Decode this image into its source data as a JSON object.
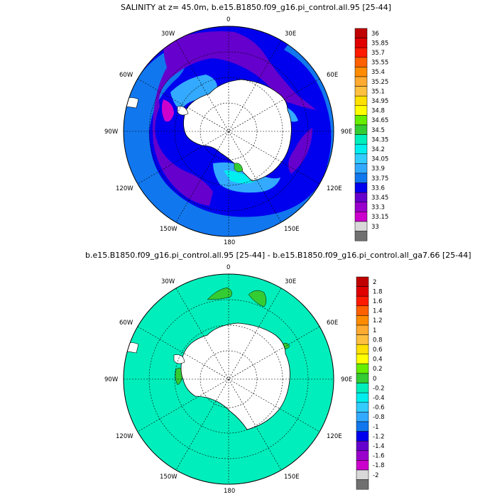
{
  "panel_top": {
    "title": "SALINITY at z=  45.0m, b.e15.B1850.f09_g16.pi_control.all.95 [25-44]",
    "lon_labels": [
      "0",
      "30E",
      "60E",
      "90E",
      "120E",
      "150E",
      "180",
      "150W",
      "120W",
      "90W",
      "60W",
      "30W"
    ],
    "colorbar_labels": [
      "36",
      "35.85",
      "35.7",
      "35.55",
      "35.4",
      "35.25",
      "35.1",
      "34.95",
      "34.8",
      "34.65",
      "34.5",
      "34.35",
      "34.2",
      "34.05",
      "33.9",
      "33.75",
      "33.6",
      "33.45",
      "33.3",
      "33.15",
      "33"
    ],
    "colorbar_colors": [
      "#c00000",
      "#e00000",
      "#ff1a00",
      "#ff6000",
      "#ff8c00",
      "#ffaa30",
      "#ffc040",
      "#ffe000",
      "#ffff00",
      "#66ee00",
      "#33cc33",
      "#00eebb",
      "#00eeee",
      "#33ccff",
      "#33aaff",
      "#1177ee",
      "#0000ee",
      "#6600cc",
      "#9900cc",
      "#cc00cc",
      "#d8d8d8",
      "#707070"
    ]
  },
  "panel_bottom": {
    "title": "b.e15.B1850.f09_g16.pi_control.all.95 [25-44] - b.e15.B1850.f09_g16.pi_control.all_ga7.66 [25-44]",
    "lon_labels": [
      "0",
      "30E",
      "60E",
      "90E",
      "120E",
      "150E",
      "180",
      "150W",
      "120W",
      "90W",
      "60W",
      "30W"
    ],
    "colorbar_labels": [
      "2",
      "1.8",
      "1.6",
      "1.4",
      "1.2",
      "1",
      "0.8",
      "0.6",
      "0.4",
      "0.2",
      "0",
      "-0.2",
      "-0.4",
      "-0.6",
      "-0.8",
      "-1",
      "-1.2",
      "-1.4",
      "-1.6",
      "-1.8",
      "-2"
    ],
    "colorbar_colors": [
      "#c00000",
      "#e00000",
      "#ff1a00",
      "#ff6000",
      "#ff8c00",
      "#ffaa30",
      "#ffc040",
      "#ffe000",
      "#ffff00",
      "#66ee00",
      "#33cc33",
      "#00eebb",
      "#00eeee",
      "#33ccff",
      "#33aaff",
      "#1177ee",
      "#0000ee",
      "#6600cc",
      "#9900cc",
      "#cc00cc",
      "#d8d8d8",
      "#707070"
    ]
  }
}
